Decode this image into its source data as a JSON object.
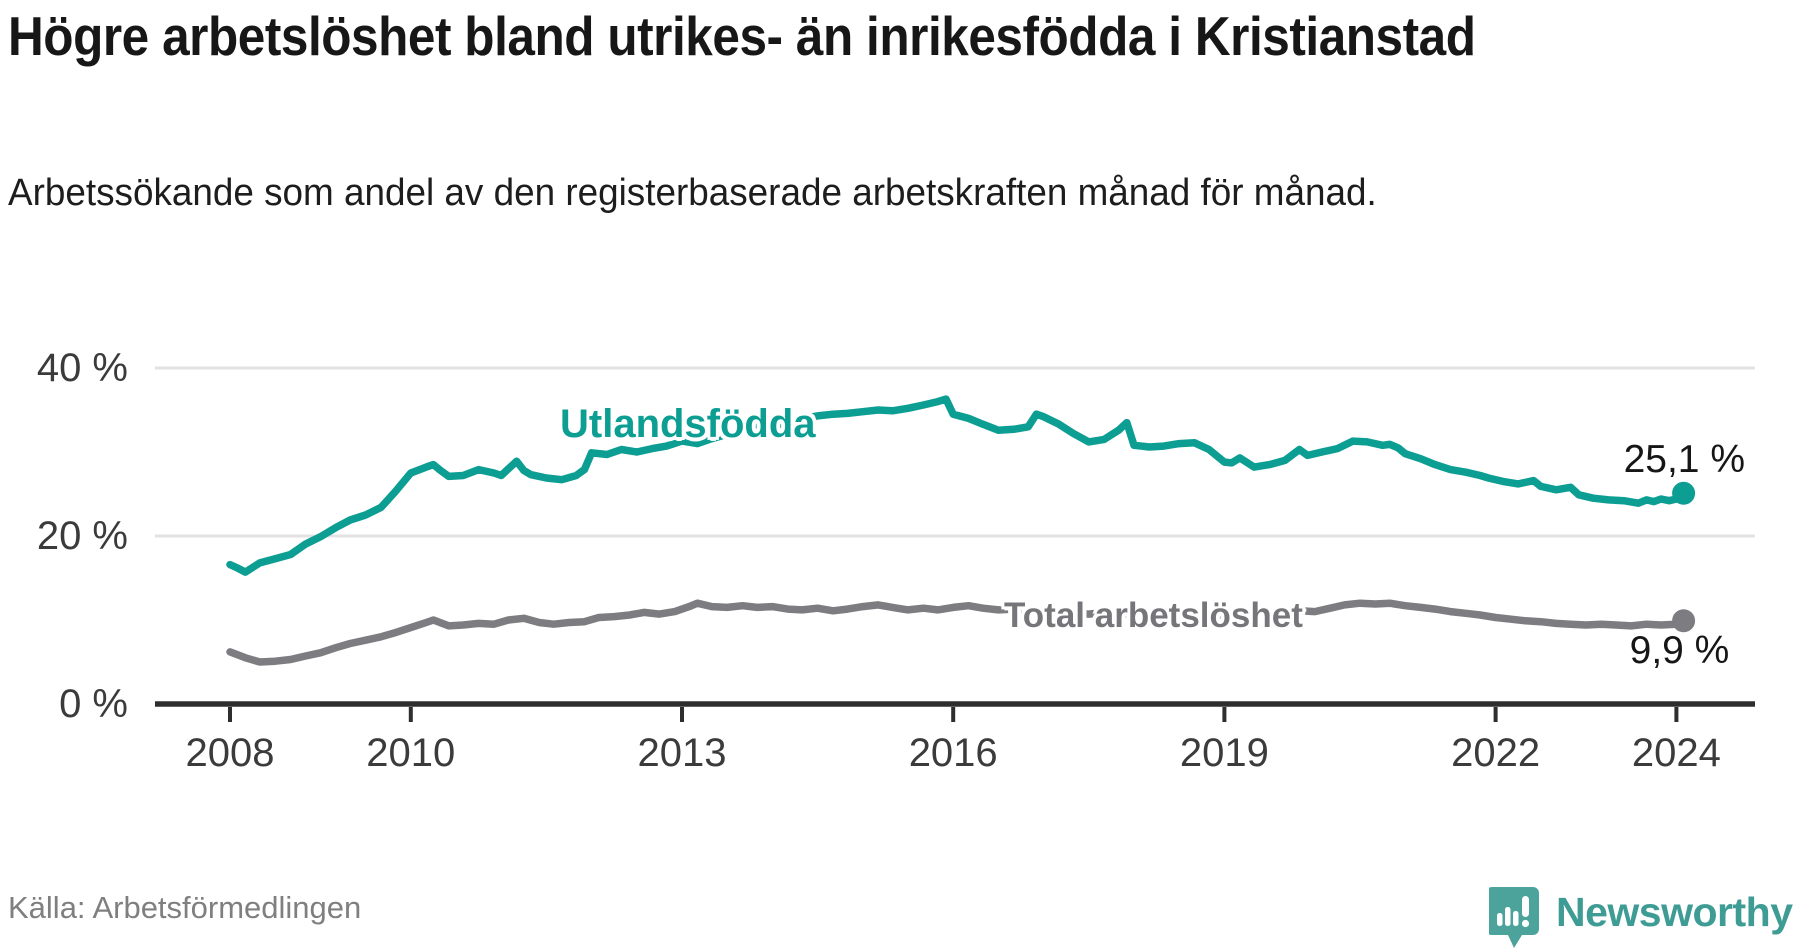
{
  "header": {
    "title": "Högre arbetslöshet bland utrikes- än inrikesfödda i Kristianstad",
    "subtitle": "Arbetssökande som andel av den registerbaserade arbetskraften månad för månad."
  },
  "footer": {
    "source": "Källa: Arbetsförmedlingen",
    "brand_name": "Newsworthy"
  },
  "colors": {
    "foreign_born_line": "#0d9e93",
    "total_line": "#7d7d81",
    "grid": "#e3e3e3",
    "axis": "#2e2e2e",
    "tick_label": "#3b3b3b",
    "value_label": "#161616",
    "brand_teal": "#3f9c95",
    "brand_icon_teal": "#4ba39c"
  },
  "chart_data": {
    "type": "line",
    "title": "Högre arbetslöshet bland utrikes- än inrikesfödda i Kristianstad",
    "subtitle": "Arbetssökande som andel av den registerbaserade arbetskraften månad för månad.",
    "unit": "%",
    "grid": "horizontal",
    "legend_position": "inline-labels",
    "x_axis": {
      "ticks": [
        2008,
        2010,
        2013,
        2016,
        2019,
        2022,
        2024
      ],
      "labels": [
        "2008",
        "2010",
        "2013",
        "2016",
        "2019",
        "2022",
        "2024"
      ],
      "range": [
        2008,
        2024.17
      ]
    },
    "y_axis": {
      "ticks": [
        0,
        20,
        40
      ],
      "labels": [
        "0 %",
        "20 %",
        "40 %"
      ],
      "range": [
        0,
        42
      ]
    },
    "style": {
      "grid_color": "#e3e3e3",
      "axis_color": "#2e2e2e",
      "line_width": 7.5,
      "end_dot_radius": 11.5
    },
    "series": [
      {
        "name": "Utlandsfödda",
        "color": "#0d9e93",
        "end_value": 25.1,
        "end_label": "25,1 %",
        "points": [
          [
            2008.0,
            16.6
          ],
          [
            2008.08,
            16.2
          ],
          [
            2008.17,
            15.7
          ],
          [
            2008.33,
            16.8
          ],
          [
            2008.5,
            17.3
          ],
          [
            2008.67,
            17.8
          ],
          [
            2008.83,
            19.0
          ],
          [
            2009.0,
            19.9
          ],
          [
            2009.17,
            21.0
          ],
          [
            2009.33,
            21.9
          ],
          [
            2009.5,
            22.5
          ],
          [
            2009.67,
            23.4
          ],
          [
            2009.83,
            25.3
          ],
          [
            2010.0,
            27.5
          ],
          [
            2010.17,
            28.2
          ],
          [
            2010.25,
            28.5
          ],
          [
            2010.33,
            27.8
          ],
          [
            2010.42,
            27.1
          ],
          [
            2010.58,
            27.2
          ],
          [
            2010.75,
            27.9
          ],
          [
            2010.92,
            27.5
          ],
          [
            2011.0,
            27.2
          ],
          [
            2011.17,
            28.9
          ],
          [
            2011.25,
            27.8
          ],
          [
            2011.33,
            27.3
          ],
          [
            2011.5,
            26.9
          ],
          [
            2011.67,
            26.7
          ],
          [
            2011.83,
            27.2
          ],
          [
            2011.92,
            27.9
          ],
          [
            2012.0,
            29.9
          ],
          [
            2012.17,
            29.7
          ],
          [
            2012.33,
            30.3
          ],
          [
            2012.5,
            30.0
          ],
          [
            2012.67,
            30.4
          ],
          [
            2012.83,
            30.7
          ],
          [
            2013.0,
            31.3
          ],
          [
            2013.17,
            31.0
          ],
          [
            2013.33,
            31.6
          ],
          [
            2013.5,
            32.1
          ],
          [
            2013.67,
            32.5
          ],
          [
            2013.83,
            33.0
          ],
          [
            2014.0,
            33.4
          ],
          [
            2014.17,
            33.2
          ],
          [
            2014.33,
            34.0
          ],
          [
            2014.5,
            34.3
          ],
          [
            2014.67,
            34.5
          ],
          [
            2014.83,
            34.6
          ],
          [
            2015.0,
            34.8
          ],
          [
            2015.17,
            35.0
          ],
          [
            2015.33,
            34.9
          ],
          [
            2015.5,
            35.2
          ],
          [
            2015.67,
            35.6
          ],
          [
            2015.83,
            36.0
          ],
          [
            2015.92,
            36.3
          ],
          [
            2016.0,
            34.5
          ],
          [
            2016.17,
            34.0
          ],
          [
            2016.33,
            33.3
          ],
          [
            2016.5,
            32.6
          ],
          [
            2016.67,
            32.7
          ],
          [
            2016.83,
            33.0
          ],
          [
            2016.92,
            34.5
          ],
          [
            2017.0,
            34.2
          ],
          [
            2017.17,
            33.3
          ],
          [
            2017.33,
            32.2
          ],
          [
            2017.5,
            31.2
          ],
          [
            2017.67,
            31.5
          ],
          [
            2017.83,
            32.6
          ],
          [
            2017.92,
            33.5
          ],
          [
            2018.0,
            30.8
          ],
          [
            2018.17,
            30.6
          ],
          [
            2018.33,
            30.7
          ],
          [
            2018.5,
            31.0
          ],
          [
            2018.67,
            31.1
          ],
          [
            2018.83,
            30.3
          ],
          [
            2019.0,
            28.8
          ],
          [
            2019.08,
            28.7
          ],
          [
            2019.17,
            29.3
          ],
          [
            2019.33,
            28.2
          ],
          [
            2019.5,
            28.5
          ],
          [
            2019.67,
            29.0
          ],
          [
            2019.83,
            30.3
          ],
          [
            2019.92,
            29.6
          ],
          [
            2020.08,
            30.0
          ],
          [
            2020.25,
            30.4
          ],
          [
            2020.42,
            31.3
          ],
          [
            2020.58,
            31.2
          ],
          [
            2020.75,
            30.8
          ],
          [
            2020.83,
            30.9
          ],
          [
            2020.92,
            30.5
          ],
          [
            2021.0,
            29.8
          ],
          [
            2021.17,
            29.2
          ],
          [
            2021.33,
            28.5
          ],
          [
            2021.5,
            27.9
          ],
          [
            2021.67,
            27.6
          ],
          [
            2021.83,
            27.2
          ],
          [
            2021.92,
            26.9
          ],
          [
            2022.08,
            26.5
          ],
          [
            2022.25,
            26.2
          ],
          [
            2022.42,
            26.6
          ],
          [
            2022.5,
            25.9
          ],
          [
            2022.67,
            25.5
          ],
          [
            2022.83,
            25.8
          ],
          [
            2022.92,
            24.9
          ],
          [
            2023.08,
            24.5
          ],
          [
            2023.25,
            24.3
          ],
          [
            2023.42,
            24.2
          ],
          [
            2023.58,
            23.9
          ],
          [
            2023.67,
            24.3
          ],
          [
            2023.75,
            24.1
          ],
          [
            2023.83,
            24.4
          ],
          [
            2023.92,
            24.2
          ],
          [
            2024.0,
            24.4
          ],
          [
            2024.08,
            25.1
          ]
        ]
      },
      {
        "name": "Total arbetslöshet",
        "color": "#7d7d81",
        "end_value": 9.9,
        "end_label": "9,9 %",
        "points": [
          [
            2008.0,
            6.2
          ],
          [
            2008.17,
            5.5
          ],
          [
            2008.33,
            5.0
          ],
          [
            2008.5,
            5.1
          ],
          [
            2008.67,
            5.3
          ],
          [
            2008.83,
            5.7
          ],
          [
            2009.0,
            6.1
          ],
          [
            2009.17,
            6.7
          ],
          [
            2009.33,
            7.2
          ],
          [
            2009.5,
            7.6
          ],
          [
            2009.67,
            8.0
          ],
          [
            2009.83,
            8.5
          ],
          [
            2010.0,
            9.1
          ],
          [
            2010.17,
            9.7
          ],
          [
            2010.25,
            10.0
          ],
          [
            2010.42,
            9.3
          ],
          [
            2010.58,
            9.4
          ],
          [
            2010.75,
            9.6
          ],
          [
            2010.92,
            9.5
          ],
          [
            2011.08,
            10.0
          ],
          [
            2011.25,
            10.2
          ],
          [
            2011.42,
            9.7
          ],
          [
            2011.58,
            9.5
          ],
          [
            2011.75,
            9.7
          ],
          [
            2011.92,
            9.8
          ],
          [
            2012.08,
            10.3
          ],
          [
            2012.25,
            10.4
          ],
          [
            2012.42,
            10.6
          ],
          [
            2012.58,
            10.9
          ],
          [
            2012.75,
            10.7
          ],
          [
            2012.92,
            11.0
          ],
          [
            2013.08,
            11.6
          ],
          [
            2013.17,
            12.0
          ],
          [
            2013.33,
            11.6
          ],
          [
            2013.5,
            11.5
          ],
          [
            2013.67,
            11.7
          ],
          [
            2013.83,
            11.5
          ],
          [
            2014.0,
            11.6
          ],
          [
            2014.17,
            11.3
          ],
          [
            2014.33,
            11.2
          ],
          [
            2014.5,
            11.4
          ],
          [
            2014.67,
            11.1
          ],
          [
            2014.83,
            11.3
          ],
          [
            2015.0,
            11.6
          ],
          [
            2015.17,
            11.8
          ],
          [
            2015.33,
            11.5
          ],
          [
            2015.5,
            11.2
          ],
          [
            2015.67,
            11.4
          ],
          [
            2015.83,
            11.2
          ],
          [
            2016.0,
            11.5
          ],
          [
            2016.17,
            11.7
          ],
          [
            2016.33,
            11.4
          ],
          [
            2016.5,
            11.2
          ],
          [
            2016.67,
            11.3
          ],
          [
            2016.83,
            11.0
          ],
          [
            2017.0,
            11.2
          ],
          [
            2017.17,
            11.0
          ],
          [
            2017.33,
            10.8
          ],
          [
            2017.5,
            10.7
          ],
          [
            2017.67,
            10.9
          ],
          [
            2017.83,
            10.7
          ],
          [
            2018.0,
            10.8
          ],
          [
            2018.17,
            10.6
          ],
          [
            2018.33,
            10.4
          ],
          [
            2018.5,
            10.5
          ],
          [
            2018.67,
            10.7
          ],
          [
            2018.83,
            10.5
          ],
          [
            2019.0,
            10.6
          ],
          [
            2019.17,
            10.8
          ],
          [
            2019.33,
            10.6
          ],
          [
            2019.5,
            10.7
          ],
          [
            2019.67,
            10.9
          ],
          [
            2019.83,
            11.1
          ],
          [
            2020.0,
            11.0
          ],
          [
            2020.17,
            11.4
          ],
          [
            2020.33,
            11.8
          ],
          [
            2020.5,
            12.0
          ],
          [
            2020.67,
            11.9
          ],
          [
            2020.83,
            12.0
          ],
          [
            2021.0,
            11.7
          ],
          [
            2021.17,
            11.5
          ],
          [
            2021.33,
            11.3
          ],
          [
            2021.5,
            11.0
          ],
          [
            2021.67,
            10.8
          ],
          [
            2021.83,
            10.6
          ],
          [
            2022.0,
            10.3
          ],
          [
            2022.17,
            10.1
          ],
          [
            2022.33,
            9.9
          ],
          [
            2022.5,
            9.8
          ],
          [
            2022.67,
            9.6
          ],
          [
            2022.83,
            9.5
          ],
          [
            2023.0,
            9.4
          ],
          [
            2023.17,
            9.5
          ],
          [
            2023.33,
            9.4
          ],
          [
            2023.5,
            9.3
          ],
          [
            2023.67,
            9.5
          ],
          [
            2023.83,
            9.4
          ],
          [
            2024.0,
            9.5
          ],
          [
            2024.08,
            9.9
          ]
        ]
      }
    ]
  }
}
